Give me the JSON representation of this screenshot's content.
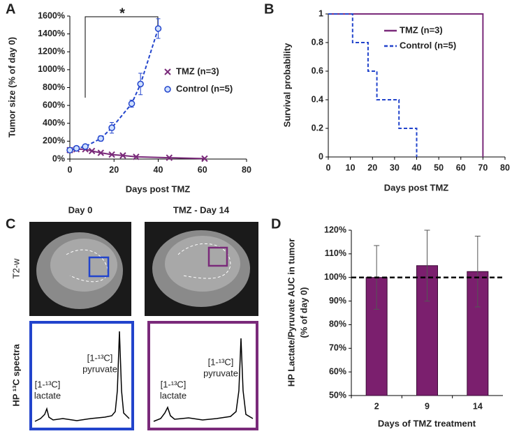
{
  "chart_data": [
    {
      "type": "line",
      "panel_label": "A",
      "ylabel": "Tumor size (% of day 0)",
      "xlabel": "Days post TMZ",
      "annotation": "*",
      "xlim": [
        0,
        80
      ],
      "xticks": [
        0,
        20,
        40,
        60,
        80
      ],
      "ylim": [
        0,
        1600
      ],
      "yticks": [
        {
          "value": 0,
          "label": "0%"
        },
        {
          "value": 200,
          "label": "200%"
        },
        {
          "value": 400,
          "label": "400%"
        },
        {
          "value": 600,
          "label": "600%"
        },
        {
          "value": 800,
          "label": "800%"
        },
        {
          "value": 1000,
          "label": "1000%"
        },
        {
          "value": 1200,
          "label": "1200%"
        },
        {
          "value": 1400,
          "label": "1400%"
        },
        {
          "value": 1600,
          "label": "1600%"
        }
      ],
      "series": [
        {
          "name": "TMZ (n=3)",
          "color": "#7a2a7a",
          "style": "solid",
          "marker": "x",
          "x": [
            0,
            3,
            7,
            10,
            14,
            19,
            24,
            30,
            45,
            61
          ],
          "values": [
            100,
            110,
            110,
            90,
            70,
            50,
            40,
            25,
            15,
            5
          ]
        },
        {
          "name": "Control (n=5)",
          "color": "#2244cc",
          "style": "dashed",
          "marker": "o",
          "x": [
            0,
            3,
            7,
            14,
            19,
            28,
            32,
            40
          ],
          "values": [
            100,
            120,
            140,
            230,
            350,
            620,
            840,
            1460
          ],
          "errors": [
            20,
            15,
            20,
            30,
            60,
            40,
            120,
            110
          ]
        }
      ]
    },
    {
      "type": "step",
      "panel_label": "B",
      "ylabel": "Survival probability",
      "xlabel": "Days post TMZ",
      "xlim": [
        0,
        80
      ],
      "xticks": [
        0,
        10,
        20,
        30,
        40,
        50,
        60,
        70,
        80
      ],
      "ylim": [
        0,
        1
      ],
      "yticks": [
        0,
        0.2,
        0.4,
        0.6,
        0.8,
        1
      ],
      "series": [
        {
          "name": "TMZ (n=3)",
          "color": "#7a2a7a",
          "style": "solid",
          "x": [
            0,
            70
          ],
          "values": [
            1,
            0
          ]
        },
        {
          "name": "Control (n=5)",
          "color": "#2244cc",
          "style": "dashed",
          "x": [
            0,
            11,
            18,
            22,
            32,
            40
          ],
          "values": [
            1,
            0.8,
            0.6,
            0.4,
            0.2,
            0
          ]
        }
      ]
    },
    {
      "type": "bar",
      "panel_label": "D",
      "ylabel": [
        "HP Lactate/Pyruvate AUC in tumor",
        "(% of day 0)"
      ],
      "xlabel": "Days of TMZ treatment",
      "categories": [
        "2",
        "9",
        "14"
      ],
      "values": [
        100,
        105,
        102.5
      ],
      "errors": [
        13.5,
        15,
        15
      ],
      "color": "#7b1f6e",
      "reference_line": 100,
      "ylim": [
        50,
        120
      ],
      "yticks": [
        {
          "value": 50,
          "label": "50%"
        },
        {
          "value": 60,
          "label": "60%"
        },
        {
          "value": 70,
          "label": "70%"
        },
        {
          "value": 80,
          "label": "80%"
        },
        {
          "value": 90,
          "label": "90%"
        },
        {
          "value": 100,
          "label": "100%"
        },
        {
          "value": 110,
          "label": "110%"
        },
        {
          "value": 120,
          "label": "120%"
        }
      ]
    }
  ],
  "panel_c": {
    "panel_label": "C",
    "columns": [
      "Day 0",
      "TMZ - Day 14"
    ],
    "rows": [
      "T2-w",
      "HP ¹³C spectra"
    ],
    "peaks": [
      {
        "label": "[1-¹³C]",
        "name": "pyruvate"
      },
      {
        "label": "[1-¹³C]",
        "name": "lactate"
      }
    ]
  }
}
